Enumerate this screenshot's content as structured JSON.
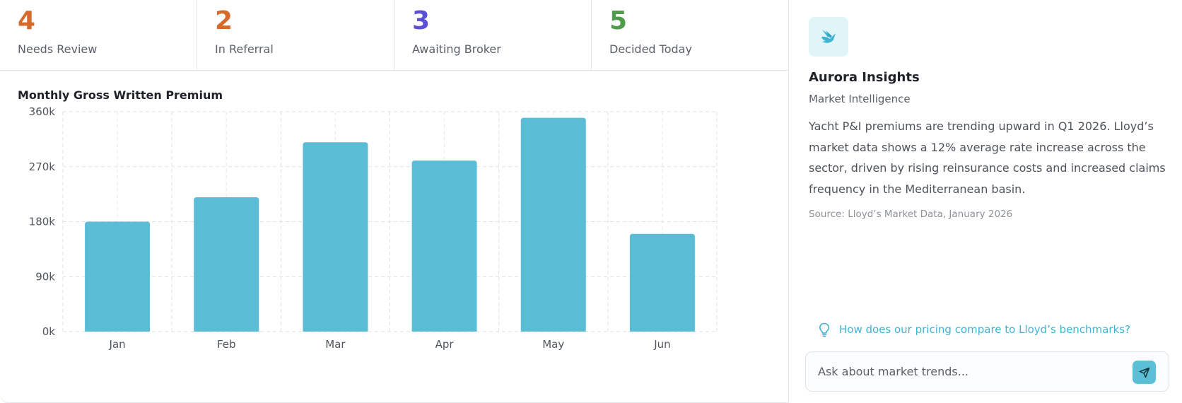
{
  "stats": [
    {
      "value": "4",
      "label": "Needs Review",
      "color": "#d56a2a"
    },
    {
      "value": "2",
      "label": "In Referral",
      "color": "#d56a2a"
    },
    {
      "value": "3",
      "label": "Awaiting Broker",
      "color": "#5a4fd6"
    },
    {
      "value": "5",
      "label": "Decided Today",
      "color": "#4f9a4b"
    }
  ],
  "chart_data": {
    "type": "bar",
    "title": "Monthly Gross Written Premium",
    "categories": [
      "Jan",
      "Feb",
      "Mar",
      "Apr",
      "May",
      "Jun"
    ],
    "values": [
      180000,
      220000,
      310000,
      280000,
      350000,
      160000
    ],
    "ylim": [
      0,
      360000
    ],
    "yticks": [
      0,
      90000,
      180000,
      270000,
      360000
    ],
    "ytick_labels": [
      "0k",
      "90k",
      "180k",
      "270k",
      "360k"
    ],
    "grid": true,
    "bar_color": "#5bbcd6"
  },
  "insights": {
    "logo_icon": "bird-logo-icon",
    "title": "Aurora Insights",
    "subtitle": "Market Intelligence",
    "body": "Yacht P&I premiums are trending upward in Q1 2026. Lloyd’s market data shows a 12% average rate increase across the sector, driven by rising reinsurance costs and increased claims frequency in the Mediterranean basin.",
    "source": "Source: Lloyd’s Market Data, January 2026",
    "suggestion": "How does our pricing compare to Lloyd’s benchmarks?",
    "suggestion_icon": "lightbulb-icon",
    "input_placeholder": "Ask about market trends...",
    "send_icon": "send-icon",
    "accent": "#5bbfd6"
  }
}
